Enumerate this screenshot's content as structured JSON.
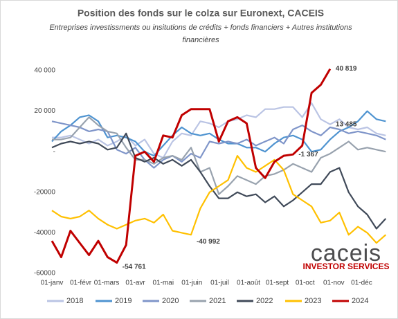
{
  "chart_data": {
    "type": "line",
    "title": "Position des fonds sur le colza sur Euronext, CACEIS",
    "subtitle_lines": [
      "Entreprises investissments ou insitutions de crédits + fonds financiers + Autres  institutions",
      "financières"
    ],
    "logo": {
      "name": "caceis",
      "tagline": "INVESTOR SERVICES"
    },
    "x": [
      0,
      10,
      20,
      30,
      40,
      50,
      60,
      70,
      80,
      90,
      100,
      110,
      120,
      130,
      140,
      150,
      160,
      170,
      180,
      190,
      200,
      210,
      220,
      230,
      240,
      250,
      260,
      270,
      280,
      290,
      300,
      310,
      320,
      330,
      340,
      350,
      360
    ],
    "xlim": [
      0,
      365
    ],
    "xticks": [
      {
        "value": 0,
        "label": "01-janv"
      },
      {
        "value": 31,
        "label": "01-févr"
      },
      {
        "value": 59,
        "label": "01-mars"
      },
      {
        "value": 90,
        "label": "01-avr"
      },
      {
        "value": 120,
        "label": "01-mai"
      },
      {
        "value": 151,
        "label": "01-juin"
      },
      {
        "value": 181,
        "label": "01-juil"
      },
      {
        "value": 212,
        "label": "01-août"
      },
      {
        "value": 243,
        "label": "01-sept"
      },
      {
        "value": 273,
        "label": "01-oct"
      },
      {
        "value": 304,
        "label": "01-nov"
      },
      {
        "value": 334,
        "label": "01-déc"
      }
    ],
    "ylim": [
      -60000,
      40000
    ],
    "yticks": [
      {
        "value": -60000,
        "label": "-60000"
      },
      {
        "value": -40000,
        "label": "-40000"
      },
      {
        "value": -20000,
        "label": "-20000"
      },
      {
        "value": 0,
        "label": "-"
      },
      {
        "value": 20000,
        "label": "20 000"
      },
      {
        "value": 40000,
        "label": "40 000"
      }
    ],
    "grid": false,
    "legend": "bottom",
    "series": [
      {
        "name": "2018",
        "color": "#bac4e4",
        "values": [
          7000,
          7000,
          8000,
          6000,
          4000,
          6000,
          3000,
          5000,
          8000,
          3000,
          6000,
          -1000,
          -3000,
          5000,
          9000,
          8000,
          15000,
          14000,
          12000,
          15000,
          16000,
          18000,
          17000,
          21000,
          21000,
          22000,
          22000,
          17000,
          24000,
          16000,
          13485,
          16000,
          12000,
          11000,
          12000,
          9000,
          8000
        ]
      },
      {
        "name": "2019",
        "color": "#4e93d0",
        "values": [
          5000,
          10000,
          13000,
          17000,
          18000,
          15000,
          7000,
          8000,
          7000,
          5000,
          0,
          -2000,
          3000,
          8000,
          12000,
          9000,
          8000,
          9000,
          6000,
          4000,
          4000,
          2000,
          2000,
          0,
          4000,
          7000,
          8000,
          6000,
          0,
          1000,
          6000,
          10000,
          12000,
          15000,
          20000,
          16000,
          15000
        ]
      },
      {
        "name": "2020",
        "color": "#7f95c9",
        "values": [
          15000,
          14000,
          13000,
          12000,
          10000,
          11000,
          10000,
          1000,
          -1000,
          2000,
          -4000,
          -8000,
          -4000,
          -2000,
          -5000,
          -1000,
          -3000,
          5000,
          4000,
          5000,
          4000,
          6000,
          3000,
          5000,
          7000,
          4000,
          11000,
          13000,
          10000,
          8000,
          12000,
          11000,
          9000,
          10000,
          9000,
          8000,
          6000
        ]
      },
      {
        "name": "2021",
        "color": "#98a2ae",
        "values": [
          6000,
          6000,
          7000,
          12000,
          17000,
          13000,
          10000,
          9000,
          2000,
          -4000,
          -4000,
          -6000,
          -3000,
          -2000,
          -4000,
          2000,
          -10000,
          -8000,
          -21000,
          -17000,
          -12000,
          -14000,
          -16000,
          -12000,
          -11000,
          -9000,
          -6000,
          -8000,
          -10000,
          -3000,
          -1000,
          2000,
          5000,
          1000,
          2000,
          1000,
          0
        ]
      },
      {
        "name": "2022",
        "color": "#404a59",
        "values": [
          2000,
          4000,
          5000,
          4000,
          5000,
          4000,
          1000,
          2000,
          9000,
          -3000,
          -5000,
          -3000,
          -6000,
          -4000,
          -7000,
          -4000,
          -10000,
          -17000,
          -23000,
          -23000,
          -20000,
          -22000,
          -21000,
          -25000,
          -22000,
          -27000,
          -24000,
          -20000,
          -16000,
          -16000,
          -10000,
          -8000,
          -20000,
          -27000,
          -31000,
          -38000,
          -33000
        ]
      },
      {
        "name": "2023",
        "color": "#ffc000",
        "values": [
          -29000,
          -32000,
          -33000,
          -32000,
          -29000,
          -33000,
          -36000,
          -38000,
          -36000,
          -34000,
          -33000,
          -35000,
          -31000,
          -39000,
          -40000,
          -40992,
          -28000,
          -20000,
          -17000,
          -14000,
          -2000,
          -8000,
          -10000,
          -7000,
          -4000,
          -9000,
          -21000,
          -24000,
          -27000,
          -35000,
          -34000,
          -30000,
          -41000,
          -37000,
          -40000,
          -45000,
          -41000
        ]
      },
      {
        "name": "2024",
        "color": "#c00000",
        "values": [
          -44000,
          -52000,
          -39000,
          -45000,
          -51000,
          -44000,
          -52000,
          -54761,
          -46000,
          -2000,
          0,
          -5000,
          8000,
          7000,
          18000,
          21000,
          21000,
          21000,
          5000,
          15000,
          17000,
          14000,
          -8000,
          -13000,
          -5000,
          -2000,
          -1367,
          3000,
          29000,
          33000,
          40819,
          null,
          null,
          null,
          null,
          null,
          null
        ]
      }
    ],
    "annotations": [
      {
        "label": "40 819",
        "x": 300,
        "y": 40819
      },
      {
        "label": "13 485",
        "x": 300,
        "y": 13485
      },
      {
        "label": "-1 367",
        "x": 260,
        "y": -1367
      },
      {
        "label": "-40 992",
        "x": 150,
        "y": -40992
      },
      {
        "label": "-54 761",
        "x": 70,
        "y": -54761
      }
    ]
  }
}
